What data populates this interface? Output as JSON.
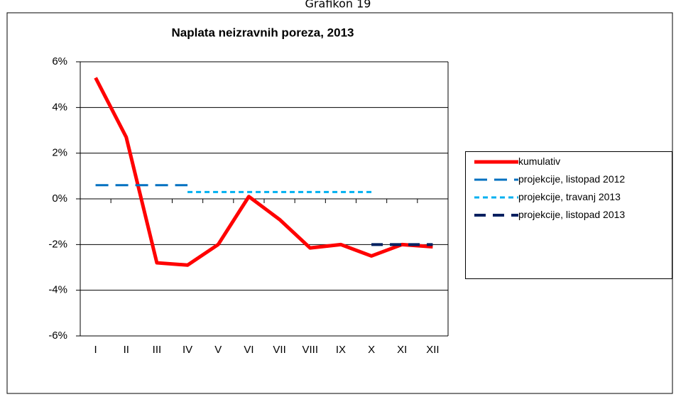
{
  "caption": "Grafikon 19",
  "chart_data": {
    "type": "line",
    "title": "Naplata neizravnih poreza,  2013",
    "categories": [
      "I",
      "II",
      "III",
      "IV",
      "V",
      "VI",
      "VII",
      "VIII",
      "IX",
      "X",
      "XI",
      "XII"
    ],
    "series": [
      {
        "name": "kumulativ",
        "color": "#ff0000",
        "values": [
          5.3,
          2.7,
          -2.8,
          -2.9,
          -2.0,
          0.1,
          -0.9,
          -2.15,
          -2.0,
          -2.5,
          -2.0,
          -2.1
        ]
      },
      {
        "name": "projekcije, listopad 2012",
        "color": "#0070c0",
        "values": [
          0.6,
          0.6,
          0.6,
          0.6,
          null,
          null,
          null,
          null,
          null,
          null,
          null,
          null
        ]
      },
      {
        "name": "projekcije, travanj 2013",
        "color": "#00b0f0",
        "values": [
          null,
          null,
          null,
          0.3,
          0.3,
          0.3,
          0.3,
          0.3,
          0.3,
          0.3,
          null,
          null
        ]
      },
      {
        "name": "projekcije, listopad 2013",
        "color": "#002060",
        "values": [
          null,
          null,
          null,
          null,
          null,
          null,
          null,
          null,
          null,
          -2.0,
          -2.0,
          -2.0
        ]
      }
    ],
    "ylim": [
      -6,
      6
    ],
    "yticks": [
      {
        "value": -6,
        "label": "-6%"
      },
      {
        "value": -4,
        "label": "-4%"
      },
      {
        "value": -2,
        "label": "-2%"
      },
      {
        "value": 0,
        "label": "0%"
      },
      {
        "value": 2,
        "label": "2%"
      },
      {
        "value": 4,
        "label": "4%"
      },
      {
        "value": 6,
        "label": "6%"
      }
    ],
    "grid": true
  }
}
